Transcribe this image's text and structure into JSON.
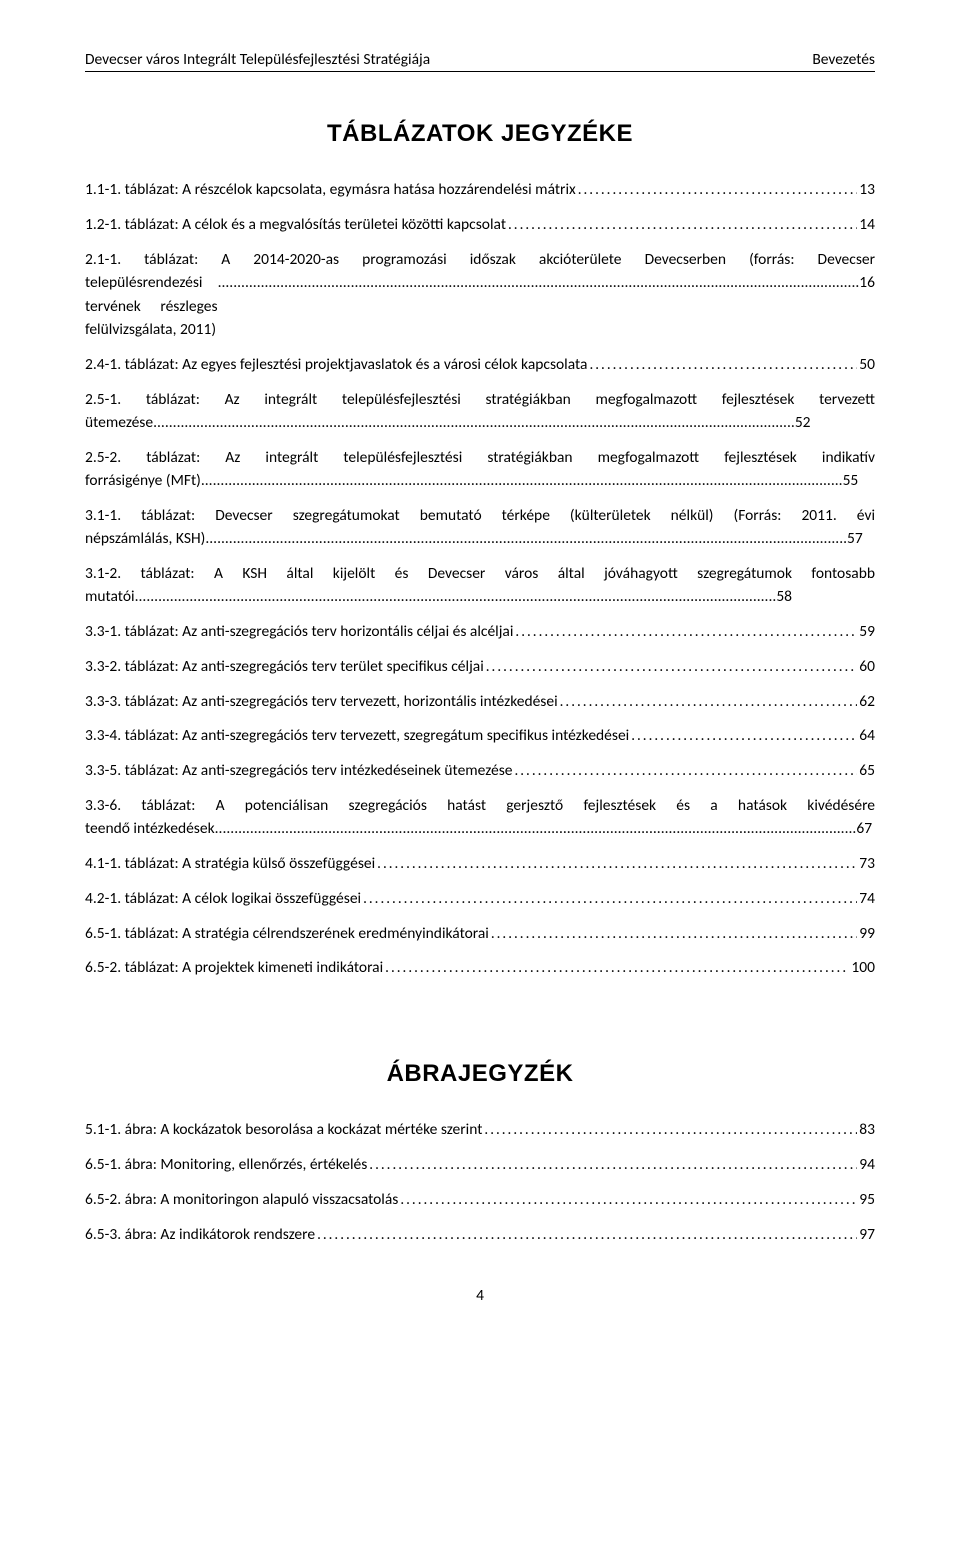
{
  "header": {
    "left": "Devecser város Integrált Településfejlesztési Stratégiája",
    "right": "Bevezetés"
  },
  "section1_title": "TÁBLÁZATOK JEGYZÉKE",
  "section2_title": "ÁBRAJEGYZÉK",
  "tables": [
    {
      "label": "1.1-1. táblázat: A részcélok kapcsolata, egymásra hatása hozzárendelési mátrix",
      "page": "13",
      "multi": false
    },
    {
      "label": "1.2-1. táblázat: A célok és a megvalósítás területei közötti kapcsolat",
      "page": "14",
      "multi": false
    },
    {
      "label_a": "2.1-1. táblázat: A 2014-2020-as programozási időszak akcióterülete Devecserben  (forrás: Devecser",
      "label_b": "településrendezési tervének részleges felülvizsgálata, 2011)",
      "page": "16",
      "multi": true
    },
    {
      "label": "2.4-1. táblázat: Az egyes fejlesztési projektjavaslatok és a városi célok kapcsolata",
      "page": "50",
      "multi": false
    },
    {
      "label_a": "2.5-1. táblázat: Az integrált településfejlesztési stratégiákban megfogalmazott fejlesztések tervezett",
      "label_b": "ütemezése",
      "page": "52",
      "multi": true
    },
    {
      "label_a": "2.5-2. táblázat: Az integrált településfejlesztési stratégiákban megfogalmazott fejlesztések indikatív",
      "label_b": "forrásigénye (MFt)",
      "page": "55",
      "multi": true
    },
    {
      "label_a": "3.1-1. táblázat: Devecser szegregátumokat bemutató térképe (külterületek nélkül) (Forrás: 2011. évi",
      "label_b": "népszámlálás, KSH)",
      "page": "57",
      "multi": true
    },
    {
      "label_a": "3.1-2. táblázat: A KSH által kijelölt és Devecser város által jóváhagyott szegregátumok fontosabb",
      "label_b": "mutatói",
      "page": "58",
      "multi": true
    },
    {
      "label": "3.3-1. táblázat: Az anti-szegregációs terv horizontális céljai és alcéljai",
      "page": "59",
      "multi": false
    },
    {
      "label": "3.3-2. táblázat: Az anti-szegregációs terv terület specifikus céljai",
      "page": "60",
      "multi": false
    },
    {
      "label": "3.3-3. táblázat: Az anti-szegregációs terv tervezett, horizontális intézkedései",
      "page": "62",
      "multi": false
    },
    {
      "label": "3.3-4. táblázat: Az anti-szegregációs terv tervezett, szegregátum specifikus intézkedései",
      "page": "64",
      "multi": false
    },
    {
      "label": "3.3-5. táblázat: Az anti-szegregációs terv intézkedéseinek ütemezése",
      "page": "65",
      "multi": false
    },
    {
      "label_a": "3.3-6. táblázat: A potenciálisan szegregációs hatást gerjesztő fejlesztések és a hatások kivédésére",
      "label_b": "teendő intézkedések",
      "page": "67",
      "multi": true
    },
    {
      "label": "4.1-1. táblázat: A stratégia külső összefüggései",
      "page": "73",
      "multi": false
    },
    {
      "label": "4.2-1. táblázat: A célok logikai összefüggései",
      "page": "74",
      "multi": false
    },
    {
      "label": "6.5-1. táblázat: A stratégia célrendszerének eredményindikátorai",
      "page": "99",
      "multi": false
    },
    {
      "label": "6.5-2. táblázat: A projektek kimeneti indikátorai",
      "page": "100",
      "multi": false
    }
  ],
  "figures": [
    {
      "label": "5.1-1. ábra: A kockázatok besorolása a kockázat mértéke szerint",
      "page": "83",
      "multi": false
    },
    {
      "label": "6.5-1. ábra: Monitoring, ellenőrzés, értékelés",
      "page": "94",
      "multi": false
    },
    {
      "label": "6.5-2. ábra: A monitoringon alapuló visszacsatolás",
      "page": "95",
      "multi": false
    },
    {
      "label": "6.5-3. ábra: Az indikátorok rendszere",
      "page": "97",
      "multi": false
    }
  ],
  "page_number": "4",
  "dots": "...................................................................................................................................................................."
}
